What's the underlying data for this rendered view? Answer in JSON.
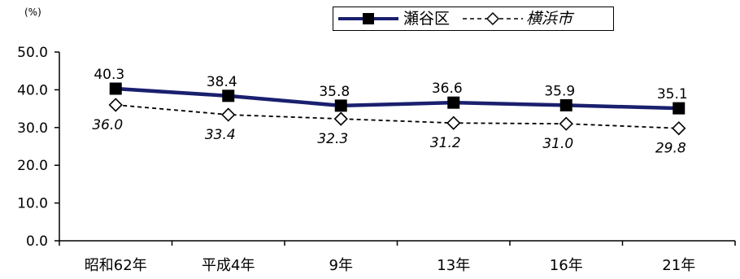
{
  "chart_data": {
    "type": "line",
    "unit": "(%)",
    "categories": [
      "昭和62年",
      "平成4年",
      "9年",
      "13年",
      "16年",
      "21年"
    ],
    "ylim": [
      0,
      50
    ],
    "yticks": [
      "0.0",
      "10.0",
      "20.0",
      "30.0",
      "40.0",
      "50.0"
    ],
    "grid": false,
    "legend_position": "top-right",
    "series": [
      {
        "name": "瀬谷区",
        "values": [
          40.3,
          38.4,
          35.8,
          36.6,
          35.9,
          35.1
        ],
        "labels": [
          "40.3",
          "38.4",
          "35.8",
          "36.6",
          "35.9",
          "35.1"
        ],
        "style": "solid",
        "marker": "filled-square",
        "color": "#1a1f6e",
        "label_italic": false
      },
      {
        "name": "横浜市",
        "values": [
          36.0,
          33.4,
          32.3,
          31.2,
          31.0,
          29.8
        ],
        "labels": [
          "36.0",
          "33.4",
          "32.3",
          "31.2",
          "31.0",
          "29.8"
        ],
        "style": "dashed",
        "marker": "open-diamond",
        "color": "#000000",
        "label_italic": true
      }
    ]
  }
}
